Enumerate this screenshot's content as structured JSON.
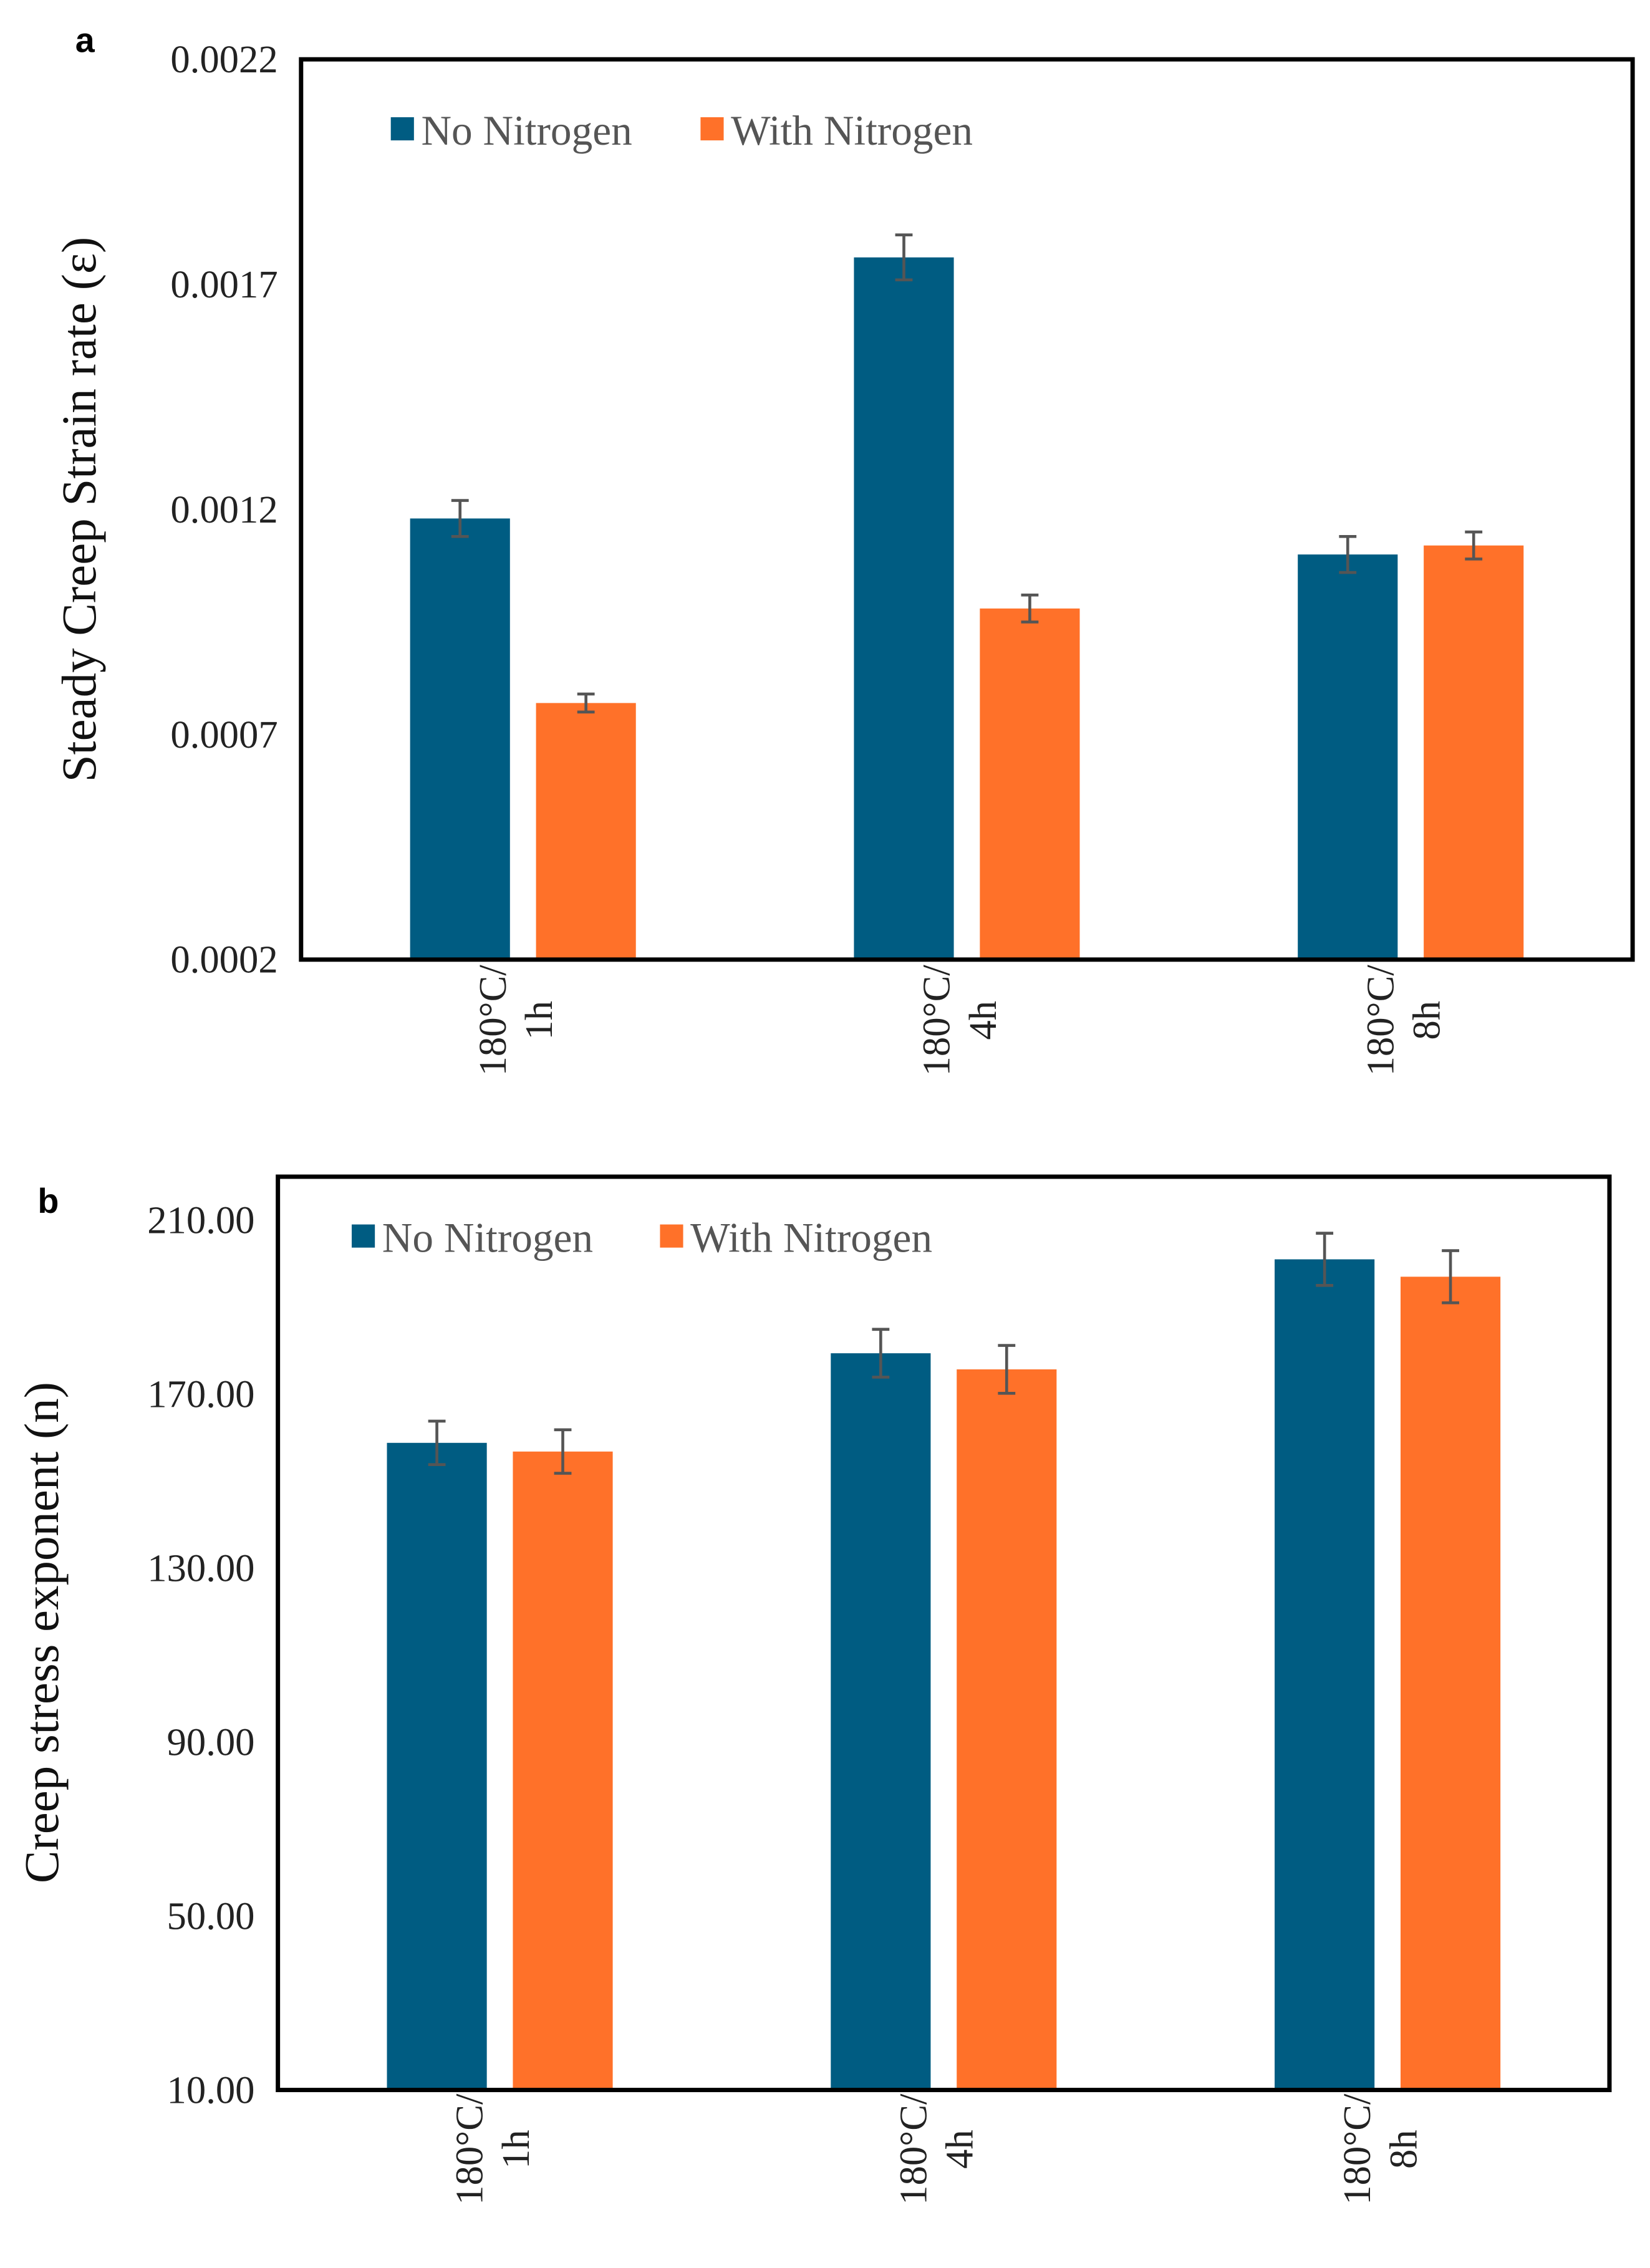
{
  "colors": {
    "no_nitrogen": "#005C82",
    "with_nitrogen": "#FF7129",
    "error_bar": "#555555"
  },
  "chart_data": [
    {
      "type": "bar",
      "panel_label": "a",
      "title": "",
      "xlabel": "",
      "ylabel": "Steady Creep Strain rate (ε)",
      "categories": [
        [
          "180°C/",
          "1h"
        ],
        [
          "180°C/",
          "4h"
        ],
        [
          "180°C/",
          "8h"
        ]
      ],
      "ylim": [
        0.0002,
        0.0022
      ],
      "yticks": [
        0.0002,
        0.0007,
        0.0012,
        0.0017,
        0.0022
      ],
      "ytick_labels": [
        "0.0002",
        "0.0007",
        "0.0012",
        "0.0017",
        "0.0022"
      ],
      "grid": false,
      "legend_position": "top-left",
      "series": [
        {
          "name": "No Nitrogen",
          "values": [
            0.00118,
            0.00176,
            0.0011
          ],
          "errors": [
            4e-05,
            5e-05,
            4e-05
          ]
        },
        {
          "name": "With Nitrogen",
          "values": [
            0.00077,
            0.00098,
            0.00112
          ],
          "errors": [
            2e-05,
            3e-05,
            3e-05
          ]
        }
      ]
    },
    {
      "type": "bar",
      "panel_label": "b",
      "title": "",
      "xlabel": "",
      "ylabel": "Creep stress exponent (n)",
      "categories": [
        [
          "180°C/",
          "1h"
        ],
        [
          "180°C/",
          "4h"
        ],
        [
          "180°C/",
          "8h"
        ]
      ],
      "ylim": [
        10,
        220
      ],
      "yticks": [
        10,
        50,
        90,
        130,
        170,
        210
      ],
      "ytick_labels": [
        "10.00",
        "50.00",
        "90.00",
        "130.00",
        "170.00",
        "210.00"
      ],
      "grid": false,
      "legend_position": "top-left",
      "series": [
        {
          "name": "No Nitrogen",
          "values": [
            158.8,
            179.4,
            201.0
          ],
          "errors": [
            5,
            5.5,
            6
          ]
        },
        {
          "name": "With Nitrogen",
          "values": [
            156.8,
            175.7,
            197.0
          ],
          "errors": [
            5,
            5.5,
            6
          ]
        }
      ]
    }
  ]
}
